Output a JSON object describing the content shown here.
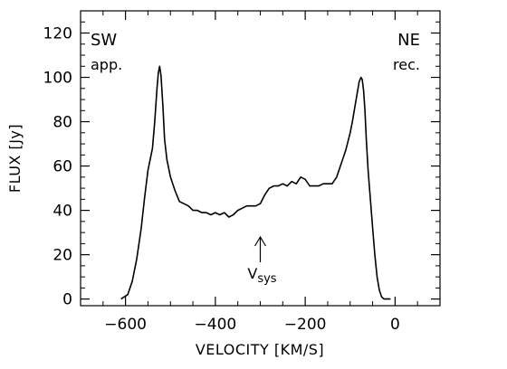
{
  "chart_data": {
    "type": "line",
    "xlabel": "VELOCITY [KM/S]",
    "ylabel": "FLUX [Jy]",
    "xlim": [
      -700,
      100
    ],
    "ylim": [
      -3,
      130
    ],
    "xticks": [
      -600,
      -400,
      -200,
      0
    ],
    "xtick_labels": [
      "−600",
      "−400",
      "−200",
      "0"
    ],
    "yticks": [
      0,
      20,
      40,
      60,
      80,
      100,
      120
    ],
    "ytick_labels": [
      "0",
      "20",
      "40",
      "60",
      "80",
      "100",
      "120"
    ],
    "grid": false,
    "annotations": {
      "sw": "SW",
      "sw_sub": "app.",
      "ne": "NE",
      "ne_sub": "rec.",
      "vsys_main": "V",
      "vsys_sub": "sys",
      "vsys_x": -300
    },
    "series": [
      {
        "x": [
          -610,
          -595,
          -585,
          -575,
          -565,
          -558,
          -550,
          -545,
          -540,
          -535,
          -530,
          -527,
          -524,
          -521,
          -517,
          -513,
          -508,
          -500,
          -490,
          -480,
          -470,
          -460,
          -450,
          -440,
          -430,
          -420,
          -410,
          -400,
          -390,
          -380,
          -370,
          -360,
          -350,
          -340,
          -330,
          -320,
          -310,
          -300,
          -290,
          -280,
          -270,
          -260,
          -250,
          -240,
          -230,
          -220,
          -210,
          -200,
          -190,
          -180,
          -170,
          -160,
          -150,
          -140,
          -130,
          -120,
          -110,
          -100,
          -95,
          -90,
          -85,
          -80,
          -76,
          -73,
          -70,
          -67,
          -64,
          -60,
          -55,
          -50,
          -45,
          -40,
          -35,
          -30,
          -25,
          -20,
          -10
        ],
        "y": [
          0,
          2,
          8,
          18,
          32,
          45,
          58,
          63,
          68,
          80,
          95,
          102,
          105,
          101,
          88,
          72,
          63,
          55,
          49,
          44,
          43,
          42,
          40,
          40,
          39,
          39,
          38,
          39,
          38,
          39,
          37,
          38,
          40,
          41,
          42,
          42,
          42,
          43,
          47,
          50,
          51,
          51,
          52,
          51,
          53,
          52,
          55,
          54,
          51,
          51,
          51,
          52,
          52,
          52,
          55,
          61,
          67,
          75,
          80,
          86,
          92,
          98,
          100,
          99,
          94,
          85,
          72,
          58,
          45,
          32,
          20,
          10,
          4,
          1,
          0,
          0,
          0
        ]
      }
    ]
  }
}
